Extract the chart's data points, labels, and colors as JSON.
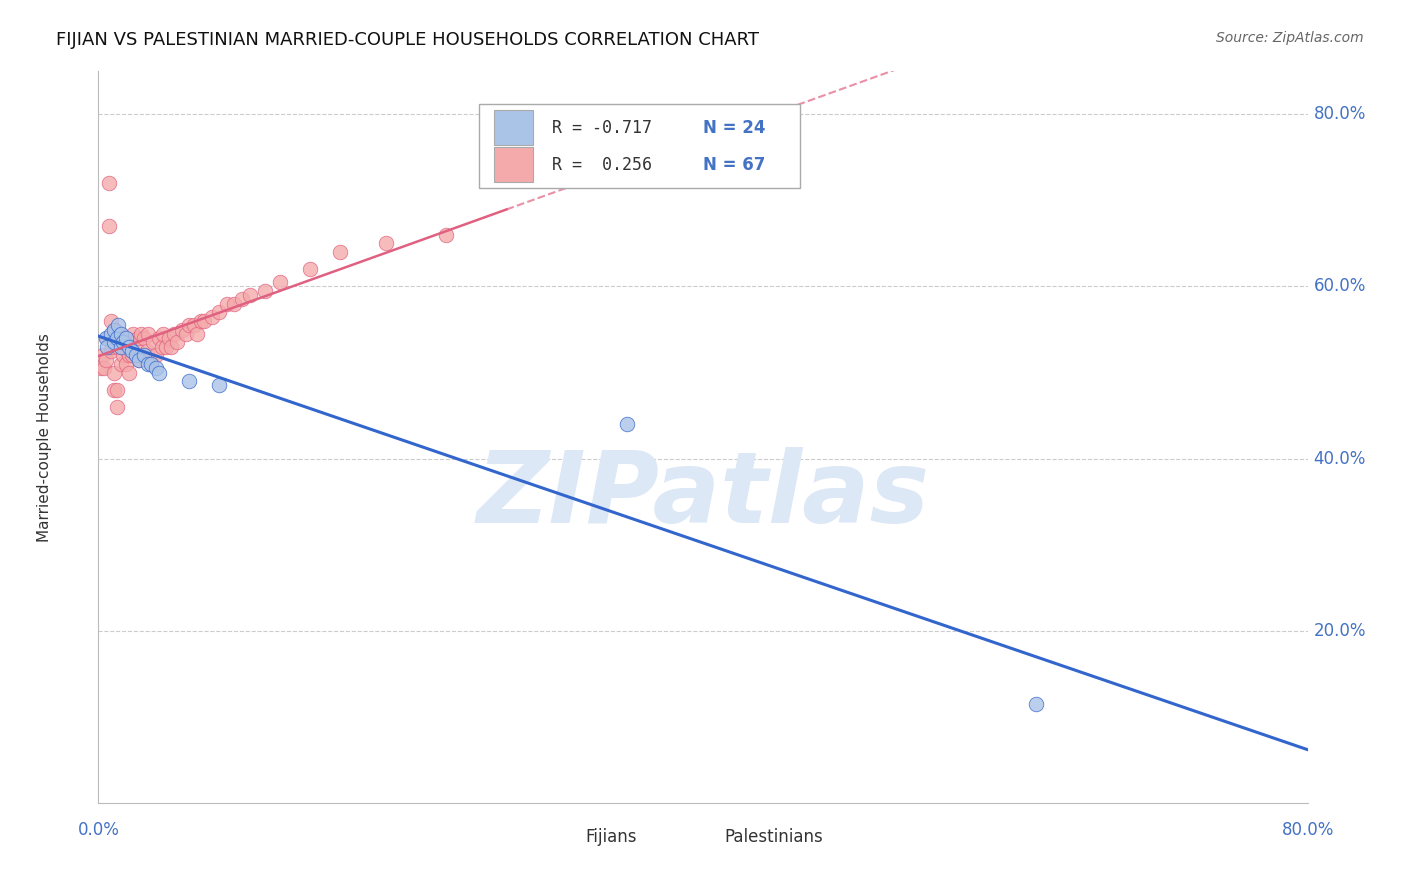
{
  "title": "FIJIAN VS PALESTINIAN MARRIED-COUPLE HOUSEHOLDS CORRELATION CHART",
  "source": "Source: ZipAtlas.com",
  "ylabel": "Married-couple Households",
  "xlim": [
    0.0,
    0.8
  ],
  "ylim": [
    0.0,
    0.85
  ],
  "legend_r_fijian": "R = -0.717",
  "legend_n_fijian": "N = 24",
  "legend_r_palestinian": "R =  0.256",
  "legend_n_palestinian": "N = 67",
  "fijian_color": "#aac4e8",
  "palestinian_color": "#f4aaaa",
  "fijian_trend_color": "#3366cc",
  "palestinian_trend_color": "#e06080",
  "watermark": "ZIPatlas",
  "watermark_color": "#dce8f5",
  "fijian_x": [
    0.005,
    0.006,
    0.008,
    0.01,
    0.01,
    0.012,
    0.013,
    0.015,
    0.015,
    0.016,
    0.018,
    0.02,
    0.022,
    0.025,
    0.027,
    0.03,
    0.033,
    0.035,
    0.038,
    0.04,
    0.06,
    0.08,
    0.35,
    0.62
  ],
  "fijian_y": [
    0.54,
    0.53,
    0.545,
    0.535,
    0.55,
    0.54,
    0.555,
    0.53,
    0.545,
    0.535,
    0.54,
    0.53,
    0.525,
    0.52,
    0.515,
    0.52,
    0.51,
    0.51,
    0.505,
    0.5,
    0.49,
    0.485,
    0.44,
    0.115
  ],
  "palestinian_x": [
    0.002,
    0.003,
    0.004,
    0.005,
    0.006,
    0.007,
    0.007,
    0.008,
    0.008,
    0.009,
    0.01,
    0.01,
    0.011,
    0.012,
    0.012,
    0.013,
    0.014,
    0.015,
    0.015,
    0.016,
    0.017,
    0.018,
    0.018,
    0.019,
    0.02,
    0.02,
    0.021,
    0.022,
    0.023,
    0.025,
    0.026,
    0.027,
    0.028,
    0.03,
    0.03,
    0.032,
    0.033,
    0.035,
    0.036,
    0.038,
    0.04,
    0.042,
    0.043,
    0.045,
    0.047,
    0.048,
    0.05,
    0.052,
    0.055,
    0.058,
    0.06,
    0.063,
    0.065,
    0.068,
    0.07,
    0.075,
    0.08,
    0.085,
    0.09,
    0.095,
    0.1,
    0.11,
    0.12,
    0.14,
    0.16,
    0.19,
    0.23
  ],
  "palestinian_y": [
    0.505,
    0.52,
    0.505,
    0.515,
    0.54,
    0.72,
    0.67,
    0.525,
    0.56,
    0.53,
    0.48,
    0.5,
    0.55,
    0.46,
    0.48,
    0.53,
    0.545,
    0.51,
    0.54,
    0.52,
    0.54,
    0.51,
    0.535,
    0.525,
    0.5,
    0.52,
    0.535,
    0.52,
    0.545,
    0.53,
    0.54,
    0.515,
    0.545,
    0.52,
    0.54,
    0.525,
    0.545,
    0.51,
    0.535,
    0.52,
    0.54,
    0.53,
    0.545,
    0.53,
    0.54,
    0.53,
    0.545,
    0.535,
    0.55,
    0.545,
    0.555,
    0.555,
    0.545,
    0.56,
    0.56,
    0.565,
    0.57,
    0.58,
    0.58,
    0.585,
    0.59,
    0.595,
    0.605,
    0.62,
    0.64,
    0.65,
    0.66
  ],
  "background_color": "#ffffff",
  "grid_color": "#cccccc",
  "y_tick_vals": [
    0.2,
    0.4,
    0.6,
    0.8
  ],
  "y_tick_labels": [
    "20.0%",
    "40.0%",
    "60.0%",
    "80.0%"
  ],
  "x_tick_vals": [
    0.0,
    0.2,
    0.4,
    0.6,
    0.8
  ],
  "x_tick_labels": [
    "0.0%",
    "",
    "",
    "",
    "80.0%"
  ]
}
